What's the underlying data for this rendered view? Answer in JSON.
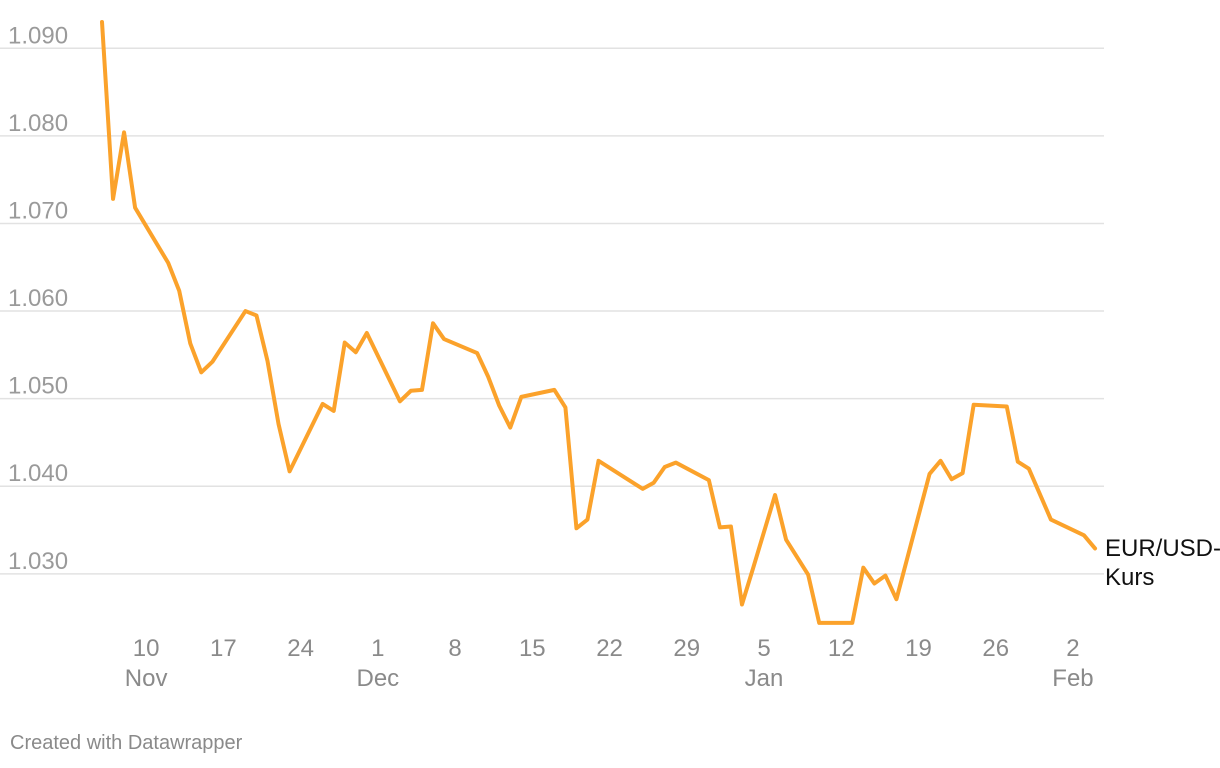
{
  "chart_data": {
    "type": "line",
    "title": "",
    "xlabel": "",
    "ylabel": "",
    "ylim": [
      1.0245,
      1.093
    ],
    "y_ticks": [
      "1.030",
      "1.040",
      "1.050",
      "1.060",
      "1.070",
      "1.080",
      "1.090"
    ],
    "x_range": [
      "2024-11-06",
      "2025-02-03"
    ],
    "x_ticks": [
      {
        "date": "2024-11-10",
        "day": "10",
        "month": "Nov"
      },
      {
        "date": "2024-11-17",
        "day": "17",
        "month": ""
      },
      {
        "date": "2024-11-24",
        "day": "24",
        "month": ""
      },
      {
        "date": "2024-12-01",
        "day": "1",
        "month": "Dec"
      },
      {
        "date": "2024-12-08",
        "day": "8",
        "month": ""
      },
      {
        "date": "2024-12-15",
        "day": "15",
        "month": ""
      },
      {
        "date": "2024-12-22",
        "day": "22",
        "month": ""
      },
      {
        "date": "2024-12-29",
        "day": "29",
        "month": ""
      },
      {
        "date": "2025-01-05",
        "day": "5",
        "month": "Jan"
      },
      {
        "date": "2025-01-12",
        "day": "12",
        "month": ""
      },
      {
        "date": "2025-01-19",
        "day": "19",
        "month": ""
      },
      {
        "date": "2025-01-26",
        "day": "26",
        "month": ""
      },
      {
        "date": "2025-02-02",
        "day": "2",
        "month": "Feb"
      }
    ],
    "grid": true,
    "series": [
      {
        "name": "EUR/USD-Kurs",
        "color": "#fba22b",
        "points": [
          [
            "2024-11-06",
            1.093
          ],
          [
            "2024-11-07",
            1.0728
          ],
          [
            "2024-11-08",
            1.0804
          ],
          [
            "2024-11-09",
            1.0718
          ],
          [
            "2024-11-12",
            1.0655
          ],
          [
            "2024-11-13",
            1.0623
          ],
          [
            "2024-11-14",
            1.0563
          ],
          [
            "2024-11-15",
            1.053
          ],
          [
            "2024-11-16",
            1.0542
          ],
          [
            "2024-11-19",
            1.06
          ],
          [
            "2024-11-20",
            1.0595
          ],
          [
            "2024-11-21",
            1.0543
          ],
          [
            "2024-11-22",
            1.0471
          ],
          [
            "2024-11-23",
            1.0417
          ],
          [
            "2024-11-26",
            1.0494
          ],
          [
            "2024-11-27",
            1.0486
          ],
          [
            "2024-11-28",
            1.0564
          ],
          [
            "2024-11-29",
            1.0553
          ],
          [
            "2024-11-30",
            1.0575
          ],
          [
            "2024-12-03",
            1.0497
          ],
          [
            "2024-12-04",
            1.0509
          ],
          [
            "2024-12-05",
            1.051
          ],
          [
            "2024-12-06",
            1.0586
          ],
          [
            "2024-12-07",
            1.0568
          ],
          [
            "2024-12-10",
            1.0552
          ],
          [
            "2024-12-11",
            1.0525
          ],
          [
            "2024-12-12",
            1.0492
          ],
          [
            "2024-12-13",
            1.0467
          ],
          [
            "2024-12-14",
            1.0502
          ],
          [
            "2024-12-17",
            1.051
          ],
          [
            "2024-12-18",
            1.049
          ],
          [
            "2024-12-19",
            1.0352
          ],
          [
            "2024-12-20",
            1.0362
          ],
          [
            "2024-12-21",
            1.0429
          ],
          [
            "2024-12-25",
            1.0397
          ],
          [
            "2024-12-26",
            1.0404
          ],
          [
            "2024-12-27",
            1.0422
          ],
          [
            "2024-12-28",
            1.0427
          ],
          [
            "2024-12-31",
            1.0407
          ],
          [
            "2025-01-01",
            1.0353
          ],
          [
            "2025-01-02",
            1.0354
          ],
          [
            "2025-01-03",
            1.0265
          ],
          [
            "2025-01-04",
            1.0306
          ],
          [
            "2025-01-06",
            1.039
          ],
          [
            "2025-01-07",
            1.0339
          ],
          [
            "2025-01-09",
            1.0299
          ],
          [
            "2025-01-10",
            1.0244
          ],
          [
            "2025-01-13",
            1.0244
          ],
          [
            "2025-01-14",
            1.0307
          ],
          [
            "2025-01-15",
            1.0289
          ],
          [
            "2025-01-16",
            1.0298
          ],
          [
            "2025-01-17",
            1.0271
          ],
          [
            "2025-01-20",
            1.0414
          ],
          [
            "2025-01-21",
            1.0429
          ],
          [
            "2025-01-22",
            1.0408
          ],
          [
            "2025-01-23",
            1.0415
          ],
          [
            "2025-01-24",
            1.0493
          ],
          [
            "2025-01-27",
            1.0491
          ],
          [
            "2025-01-28",
            1.0428
          ],
          [
            "2025-01-29",
            1.042
          ],
          [
            "2025-01-31",
            1.0362
          ],
          [
            "2025-02-03",
            1.0344
          ],
          [
            "2025-02-04",
            1.0329
          ]
        ]
      }
    ]
  },
  "series_label_lines": [
    "EUR/USD-",
    "Kurs"
  ],
  "credit": "Created with Datawrapper"
}
